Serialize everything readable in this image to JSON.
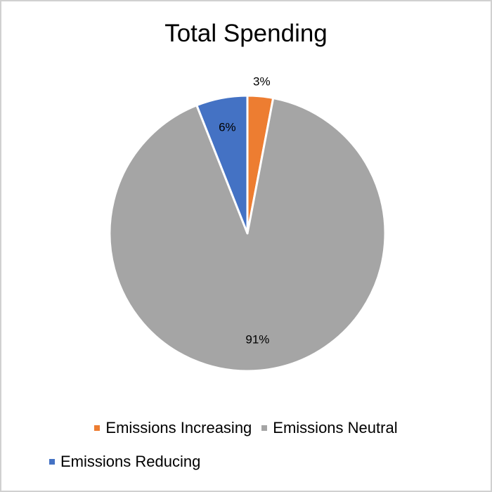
{
  "chart_data": {
    "type": "pie",
    "title": "Total Spending",
    "start_angle_deg": 0,
    "direction": "clockwise",
    "categories": [
      "Emissions Increasing",
      "Emissions Neutral",
      "Emissions Reducing"
    ],
    "values": [
      3,
      91,
      6
    ],
    "labels": [
      "3%",
      "91%",
      "6%"
    ],
    "colors": [
      "#ED7D31",
      "#A5A5A5",
      "#4472C4"
    ],
    "legend_position": "bottom"
  }
}
